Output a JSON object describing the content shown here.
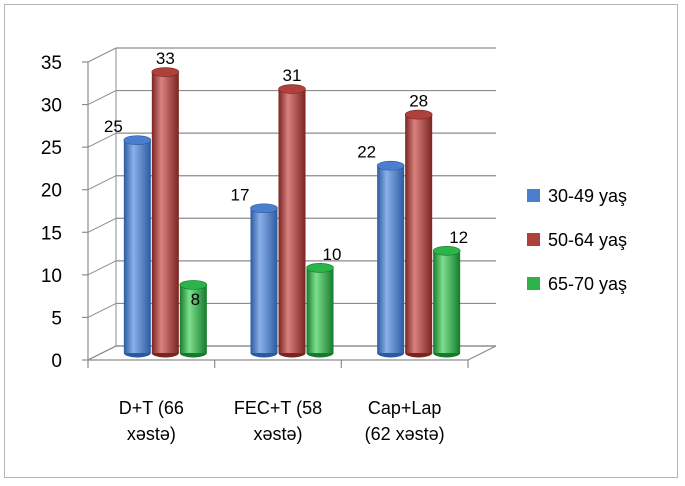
{
  "chart_data": {
    "type": "bar",
    "categories": [
      [
        "D+T (66",
        "xəstə)"
      ],
      [
        "FEC+T (58",
        "xəstə)"
      ],
      [
        "Cap+Lap",
        "(62 xəstə)"
      ]
    ],
    "series": [
      {
        "name": "30-49 yaş",
        "values": [
          25,
          17,
          22
        ],
        "color": "#4a7fd0",
        "dark": "#2c5aa0",
        "light": "#8ab0ea"
      },
      {
        "name": "50-64 yaş",
        "values": [
          33,
          31,
          28
        ],
        "color": "#b0403c",
        "dark": "#7a2421",
        "light": "#d98380"
      },
      {
        "name": "65-70 yaş",
        "values": [
          8,
          10,
          12
        ],
        "color": "#2cb34a",
        "dark": "#147a2c",
        "light": "#7ee08e"
      }
    ],
    "y_ticks": [
      0,
      5,
      10,
      15,
      20,
      25,
      30,
      35
    ],
    "ylim": [
      0,
      35
    ],
    "grid": true,
    "legend": "right",
    "style": "3d-cylinder"
  }
}
